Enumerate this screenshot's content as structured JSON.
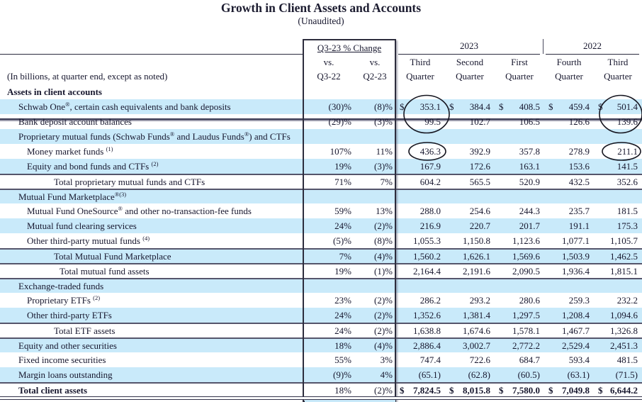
{
  "page": {
    "title": "Growth in Client Assets and Accounts",
    "subtitle": "(Unaudited)"
  },
  "header": {
    "change_box_title": "Q3-23 % Change",
    "change_cols": [
      {
        "top": "vs.",
        "bottom": "Q3-22"
      },
      {
        "top": "vs.",
        "bottom": "Q2-23"
      }
    ],
    "year_groups": [
      {
        "label": "2023"
      },
      {
        "label": "2022"
      }
    ],
    "quarter_cols": [
      {
        "top": "Third",
        "bottom": "Quarter"
      },
      {
        "top": "Second",
        "bottom": "Quarter"
      },
      {
        "top": "First",
        "bottom": "Quarter"
      },
      {
        "top": "Fourth",
        "bottom": "Quarter"
      },
      {
        "top": "Third",
        "bottom": "Quarter"
      }
    ],
    "row_caption": "(In billions, at quarter end, except as noted)"
  },
  "table": {
    "dollar_sign": "$",
    "rows": [
      {
        "label": [
          {
            "t": "Assets in client accounts"
          }
        ],
        "indent": 0,
        "bold_label": true,
        "bg": "white"
      },
      {
        "label": [
          {
            "t": "Schwab One"
          },
          {
            "t": "®",
            "sup": true
          },
          {
            "t": ", certain cash equivalents and bank deposits"
          }
        ],
        "indent": 1,
        "bg": "blue",
        "pct": [
          "(30)%",
          "(8)%"
        ],
        "values": [
          "353.1",
          "384.4",
          "408.5",
          "459.4",
          "501.4"
        ],
        "dollars": true
      },
      {
        "label": [
          {
            "t": "Bank deposit account balances"
          }
        ],
        "indent": 1,
        "bg": "white",
        "pct": [
          "(29)%",
          "(3)%"
        ],
        "values": [
          "99.5",
          "102.7",
          "106.5",
          "126.6",
          "139.6"
        ]
      },
      {
        "label": [
          {
            "t": "Proprietary mutual funds (Schwab Funds"
          },
          {
            "t": "®",
            "sup": true
          },
          {
            "t": " and Laudus Funds"
          },
          {
            "t": "®",
            "sup": true
          },
          {
            "t": ") and CTFs"
          }
        ],
        "indent": 1,
        "bg": "blue"
      },
      {
        "label": [
          {
            "t": "Money market funds "
          },
          {
            "t": "(1)",
            "sup": true
          }
        ],
        "indent": 2,
        "bg": "white",
        "pct": [
          "107%",
          "11%"
        ],
        "values": [
          "436.3",
          "392.9",
          "357.8",
          "278.9",
          "211.1"
        ]
      },
      {
        "label": [
          {
            "t": "Equity and bond funds and CTFs "
          },
          {
            "t": "(2)",
            "sup": true
          }
        ],
        "indent": 2,
        "bg": "blue",
        "pct": [
          "19%",
          "(3)%"
        ],
        "values": [
          "167.9",
          "172.6",
          "163.1",
          "153.6",
          "141.5"
        ]
      },
      {
        "label": [
          {
            "t": "Total proprietary mutual funds and CTFs"
          }
        ],
        "indent": 3,
        "bg": "white",
        "border_top": true,
        "pct": [
          "71%",
          "7%"
        ],
        "values": [
          "604.2",
          "565.5",
          "520.9",
          "432.5",
          "352.6"
        ]
      },
      {
        "label": [
          {
            "t": "Mutual Fund Marketplace"
          },
          {
            "t": "®",
            "sup": true
          },
          {
            "t": "(3)",
            "sup": true
          }
        ],
        "indent": 1,
        "bg": "blue",
        "border_top": true
      },
      {
        "label": [
          {
            "t": "Mutual Fund OneSource"
          },
          {
            "t": "®",
            "sup": true
          },
          {
            "t": " and other no-transaction-fee funds"
          }
        ],
        "indent": 2,
        "bg": "white",
        "pct": [
          "59%",
          "13%"
        ],
        "values": [
          "288.0",
          "254.6",
          "244.3",
          "235.7",
          "181.5"
        ]
      },
      {
        "label": [
          {
            "t": "Mutual fund clearing services"
          }
        ],
        "indent": 2,
        "bg": "blue",
        "pct": [
          "24%",
          "(2)%"
        ],
        "values": [
          "216.9",
          "220.7",
          "201.7",
          "191.1",
          "175.3"
        ]
      },
      {
        "label": [
          {
            "t": "Other third-party mutual funds "
          },
          {
            "t": "(4)",
            "sup": true
          }
        ],
        "indent": 2,
        "bg": "white",
        "pct": [
          "(5)%",
          "(8)%"
        ],
        "values": [
          "1,055.3",
          "1,150.8",
          "1,123.6",
          "1,077.1",
          "1,105.7"
        ]
      },
      {
        "label": [
          {
            "t": "Total Mutual Fund Marketplace"
          }
        ],
        "indent": 3,
        "bg": "blue",
        "border_top": true,
        "pct": [
          "7%",
          "(4)%"
        ],
        "values": [
          "1,560.2",
          "1,626.1",
          "1,569.6",
          "1,503.9",
          "1,462.5"
        ]
      },
      {
        "label": [
          {
            "t": "Total mutual fund assets"
          }
        ],
        "indent": 4,
        "bg": "white",
        "border_top": true,
        "pct": [
          "19%",
          "(1)%"
        ],
        "values": [
          "2,164.4",
          "2,191.6",
          "2,090.5",
          "1,936.4",
          "1,815.1"
        ]
      },
      {
        "label": [
          {
            "t": "Exchange-traded funds"
          }
        ],
        "indent": 1,
        "bg": "blue",
        "border_top": true
      },
      {
        "label": [
          {
            "t": "Proprietary ETFs "
          },
          {
            "t": "(2)",
            "sup": true
          }
        ],
        "indent": 2,
        "bg": "white",
        "pct": [
          "23%",
          "(2)%"
        ],
        "values": [
          "286.2",
          "293.2",
          "280.6",
          "259.3",
          "232.2"
        ]
      },
      {
        "label": [
          {
            "t": "Other third-party ETFs"
          }
        ],
        "indent": 2,
        "bg": "blue",
        "pct": [
          "24%",
          "(2)%"
        ],
        "values": [
          "1,352.6",
          "1,381.4",
          "1,297.5",
          "1,208.4",
          "1,094.6"
        ]
      },
      {
        "label": [
          {
            "t": "Total ETF assets"
          }
        ],
        "indent": 3,
        "bg": "white",
        "border_top": true,
        "pct": [
          "24%",
          "(2)%"
        ],
        "values": [
          "1,638.8",
          "1,674.6",
          "1,578.1",
          "1,467.7",
          "1,326.8"
        ]
      },
      {
        "label": [
          {
            "t": "Equity and other securities"
          }
        ],
        "indent": 1,
        "bg": "blue",
        "border_top": true,
        "pct": [
          "18%",
          "(4)%"
        ],
        "values": [
          "2,886.4",
          "3,002.7",
          "2,772.2",
          "2,529.4",
          "2,451.3"
        ]
      },
      {
        "label": [
          {
            "t": "Fixed income securities"
          }
        ],
        "indent": 1,
        "bg": "white",
        "pct": [
          "55%",
          "3%"
        ],
        "values": [
          "747.4",
          "722.6",
          "684.7",
          "593.4",
          "481.5"
        ]
      },
      {
        "label": [
          {
            "t": "Margin loans outstanding"
          }
        ],
        "indent": 1,
        "bg": "blue",
        "pct": [
          "(9)%",
          "4%"
        ],
        "values": [
          "(65.1)",
          "(62.8)",
          "(60.5)",
          "(63.1)",
          "(71.5)"
        ]
      },
      {
        "label": [
          {
            "t": "Total client assets"
          }
        ],
        "indent": 1,
        "bold_label": true,
        "bg": "white",
        "border_top": true,
        "pct": [
          "18%",
          "(2)%"
        ],
        "values": [
          "7,824.5",
          "8,015.8",
          "7,580.0",
          "7,049.8",
          "6,644.2"
        ],
        "dollars": true,
        "bold_values": true
      }
    ]
  },
  "annotations": {
    "circled_values": [
      {
        "values": [
          "353.1",
          "99.5"
        ],
        "location": "2023 Third Quarter, Schwab One and Bank deposit account balances"
      },
      {
        "values": [
          "501.4",
          "139.6"
        ],
        "location": "2022 Third Quarter, Schwab One and Bank deposit account balances"
      },
      {
        "values": [
          "436.3"
        ],
        "location": "2023 Third Quarter, Money market funds"
      },
      {
        "values": [
          "211.1"
        ],
        "location": "2022 Third Quarter, Money market funds"
      }
    ]
  },
  "colors": {
    "row_highlight": "#c9eafa",
    "title_text": "#1c1c30",
    "circle_stroke": "#15151f"
  }
}
